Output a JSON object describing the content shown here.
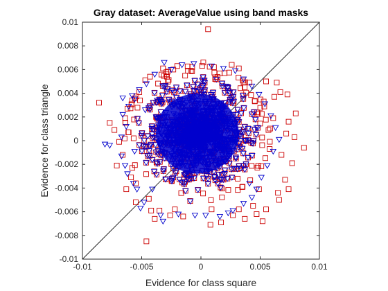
{
  "chart_data": {
    "type": "scatter",
    "title": "Gray dataset: AverageValue using band masks",
    "xlabel": "Evidence for class square",
    "ylabel": "Evidence for class triangle",
    "xlim": [
      -0.01,
      0.01
    ],
    "ylim": [
      -0.01,
      0.01
    ],
    "x_ticks": [
      -0.01,
      -0.005,
      0,
      0.005,
      0.01
    ],
    "x_tick_labels": [
      "-0.01",
      "-0.005",
      "0",
      "0.005",
      "0.01"
    ],
    "y_ticks": [
      -0.01,
      -0.008,
      -0.006,
      -0.004,
      -0.002,
      0,
      0.002,
      0.004,
      0.006,
      0.008,
      0.01
    ],
    "y_tick_labels": [
      "-0.01",
      "-0.008",
      "-0.006",
      "-0.004",
      "-0.002",
      "0",
      "0.002",
      "0.004",
      "0.006",
      "0.008",
      "0.01"
    ],
    "grid": false,
    "legend": "none",
    "reference_line": {
      "x": [
        -0.01,
        0.01
      ],
      "y": [
        -0.01,
        0.01
      ],
      "color": "#000000"
    },
    "series": [
      {
        "marker": "square",
        "color": "#cc0000",
        "points": [
          [
            0.0006,
            0.0094
          ],
          [
            0.0055,
            0.005
          ],
          [
            0.0067,
            0.0041
          ],
          [
            0.0062,
            0.0037
          ],
          [
            0.0073,
            0.0039
          ],
          [
            0.008,
            0.0023
          ],
          [
            0.0074,
            0.0016
          ],
          [
            0.0072,
            0.0006
          ],
          [
            0.0079,
            0.0003
          ],
          [
            0.0087,
            -0.0006
          ],
          [
            0.0077,
            -0.0019
          ],
          [
            0.0071,
            -0.0033
          ],
          [
            0.0074,
            -0.0041
          ],
          [
            0.0066,
            -0.005
          ],
          [
            0.0052,
            -0.0068
          ],
          [
            0.0047,
            -0.0062
          ],
          [
            0.0037,
            -0.0066
          ],
          [
            0.0027,
            -0.0063
          ],
          [
            0.0017,
            -0.0069
          ],
          [
            0.0008,
            -0.0071
          ],
          [
            -0.0015,
            -0.0064
          ],
          [
            -0.0026,
            -0.0063
          ],
          [
            -0.0039,
            -0.0066
          ],
          [
            -0.0042,
            -0.0059
          ],
          [
            -0.0046,
            -0.0085
          ],
          [
            -0.0055,
            -0.0052
          ],
          [
            -0.0063,
            -0.0041
          ],
          [
            -0.0059,
            -0.0031
          ],
          [
            -0.0071,
            -0.0021
          ],
          [
            -0.0066,
            -0.0012
          ],
          [
            -0.0069,
            -0.0001
          ],
          [
            -0.0073,
            0.0009
          ],
          [
            -0.0064,
            0.0019
          ],
          [
            -0.0077,
            0.0015
          ],
          [
            -0.0086,
            0.0032
          ],
          [
            -0.0062,
            0.0027
          ],
          [
            -0.0047,
            0.0051
          ],
          [
            -0.0043,
            0.0054
          ],
          [
            -0.0032,
            0.0061
          ],
          [
            -0.002,
            0.0063
          ],
          [
            -0.0011,
            0.0059
          ],
          [
            0.0002,
            0.0066
          ],
          [
            0.0011,
            0.0062
          ],
          [
            0.002,
            0.0057
          ],
          [
            0.0026,
            0.0064
          ],
          [
            0.0032,
            0.0061
          ],
          [
            0.0041,
            0.0049
          ],
          [
            0.0064,
            0.0049
          ],
          [
            0.0061,
            0.0019
          ],
          [
            0.0068,
            -0.0012
          ],
          [
            0.0065,
            -0.0044
          ],
          [
            0.0055,
            -0.0058
          ],
          [
            0.0044,
            -0.0055
          ],
          [
            0.0032,
            -0.0058
          ],
          [
            -0.0052,
            0.0041
          ],
          [
            -0.0058,
            0.0034
          ],
          [
            -0.0061,
            0.0007
          ],
          [
            -0.0058,
            -0.0023
          ],
          [
            -0.0055,
            -0.0036
          ],
          [
            -0.0044,
            -0.0049
          ],
          [
            -0.0035,
            -0.0059
          ],
          [
            -0.0022,
            -0.0058
          ],
          [
            0.0053,
            0.0033
          ],
          [
            0.0057,
            0.0009
          ],
          [
            0.0058,
            -0.0007
          ],
          [
            0.0049,
            -0.0041
          ],
          [
            -0.0029,
            0.0056
          ],
          [
            0.0012,
            0.0052
          ],
          [
            0.0036,
            0.0049
          ],
          [
            0.0009,
            -0.0058
          ]
        ]
      },
      {
        "marker": "triangle-down",
        "color": "#0000cc",
        "points": [
          [
            -0.0025,
            0.006
          ],
          [
            -0.0031,
            0.0066
          ],
          [
            -0.0016,
            0.0064
          ],
          [
            -0.0006,
            0.0065
          ],
          [
            0.0009,
            0.0063
          ],
          [
            0.0019,
            0.0061
          ],
          [
            0.0029,
            0.0059
          ],
          [
            -0.0039,
            0.0056
          ],
          [
            -0.0046,
            0.0048
          ],
          [
            -0.0052,
            0.0043
          ],
          [
            -0.0058,
            0.0038
          ],
          [
            -0.0061,
            0.0029
          ],
          [
            -0.0066,
            0.0022
          ],
          [
            -0.0063,
            0.0012
          ],
          [
            -0.0067,
            0.0003
          ],
          [
            -0.0077,
            -0.0004
          ],
          [
            -0.0081,
            -0.0003
          ],
          [
            -0.0067,
            -0.0013
          ],
          [
            -0.0064,
            -0.0021
          ],
          [
            -0.0062,
            -0.0028
          ],
          [
            -0.0057,
            -0.0036
          ],
          [
            -0.0054,
            -0.0041
          ],
          [
            -0.0048,
            -0.0052
          ],
          [
            -0.0051,
            -0.0057
          ],
          [
            -0.0034,
            -0.0063
          ],
          [
            -0.0032,
            -0.0068
          ],
          [
            -0.0019,
            -0.0062
          ],
          [
            -0.0005,
            -0.0063
          ],
          [
            0.0004,
            -0.0063
          ],
          [
            0.0016,
            -0.0064
          ],
          [
            0.0023,
            -0.0061
          ],
          [
            0.0027,
            -0.0059
          ],
          [
            0.0036,
            -0.0053
          ],
          [
            0.0043,
            -0.0048
          ],
          [
            0.0047,
            -0.0041
          ],
          [
            0.0051,
            -0.0031
          ],
          [
            0.0056,
            -0.0021
          ],
          [
            0.0061,
            -0.0009
          ],
          [
            0.0066,
            0.0001
          ],
          [
            0.0063,
            0.0011
          ],
          [
            0.0059,
            0.0021
          ],
          [
            0.0054,
            0.0031
          ],
          [
            0.0049,
            0.0039
          ],
          [
            0.0043,
            0.0046
          ],
          [
            0.0036,
            0.0052
          ],
          [
            -0.0066,
            0.0036
          ],
          [
            -0.0056,
            0.0035
          ],
          [
            -0.0037,
            0.0034
          ],
          [
            -0.0031,
            0.0046
          ],
          [
            0.0001,
            0.0051
          ],
          [
            0.0021,
            0.0046
          ],
          [
            -0.0009,
            -0.0051
          ],
          [
            -0.0041,
            -0.0041
          ],
          [
            -0.0047,
            0.0026
          ],
          [
            0.0041,
            -0.0036
          ],
          [
            0.0047,
            0.0011
          ],
          [
            -0.0056,
            -0.0009
          ]
        ]
      }
    ],
    "cloud": {
      "center": [
        -0.0003,
        0.0006
      ],
      "point_count": 1400,
      "spread": [
        0.0028,
        0.0026
      ]
    }
  }
}
